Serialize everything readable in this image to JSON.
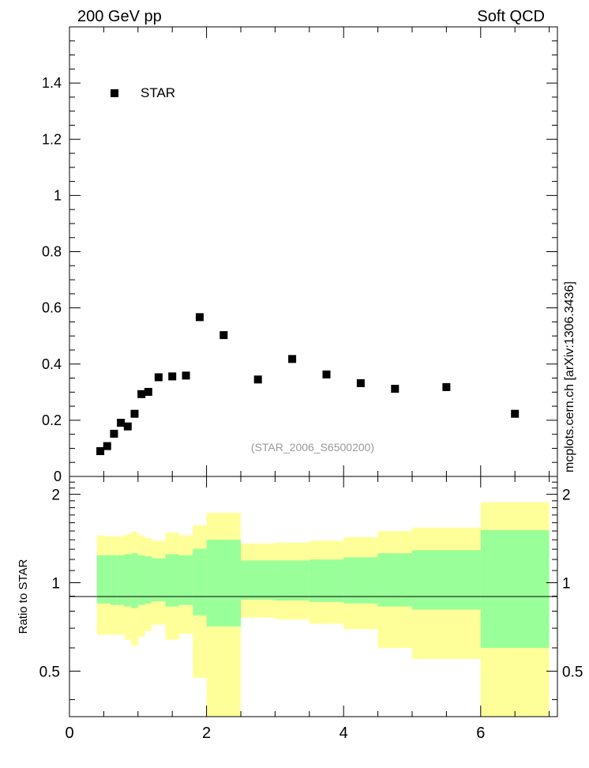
{
  "header": {
    "left_label": "200 GeV pp",
    "right_label": "Soft QCD",
    "side_label": "mcplots.cern.ch [arXiv:1306.3436]"
  },
  "colors": {
    "yellow_band": "#ffff99",
    "green_band": "#99ff99",
    "marker": "#000000",
    "watermark": "#999999"
  },
  "chart_data": [
    {
      "type": "scatter",
      "title": "",
      "xlabel": "",
      "ylabel": "",
      "xlim": [
        0,
        7.12
      ],
      "ylim": [
        0,
        1.6
      ],
      "y_ticks": [
        0,
        0.2,
        0.4,
        0.6,
        0.8,
        1,
        1.2,
        1.4
      ],
      "y_tick_labels": [
        "0",
        "0.2",
        "0.4",
        "0.6",
        "0.8",
        "1",
        "1.2",
        "1.4"
      ],
      "legend": {
        "entries": [
          "STAR"
        ],
        "placement": "top-left"
      },
      "annotation": "(STAR_2006_S6500200)",
      "series": [
        {
          "name": "STAR",
          "x": [
            0.45,
            0.55,
            0.65,
            0.75,
            0.85,
            0.95,
            1.05,
            1.15,
            1.3,
            1.5,
            1.7,
            1.9,
            2.25,
            2.75,
            3.25,
            3.75,
            4.25,
            4.75,
            5.5,
            6.5
          ],
          "y": [
            0.09,
            0.108,
            0.152,
            0.191,
            0.178,
            0.223,
            0.293,
            0.301,
            0.353,
            0.356,
            0.359,
            0.567,
            0.503,
            0.345,
            0.418,
            0.363,
            0.332,
            0.312,
            0.318,
            0.223
          ]
        }
      ]
    },
    {
      "type": "area",
      "title": "",
      "xlabel": "",
      "ylabel": "Ratio to STAR",
      "xlim": [
        0,
        7.12
      ],
      "ylim": [
        0.35,
        2.3
      ],
      "scale": "log",
      "y_ticks": [
        0.5,
        1,
        2
      ],
      "y_tick_labels": [
        "0.5",
        "1",
        "2"
      ],
      "x_ticks": [
        0,
        2,
        4,
        6
      ],
      "x_tick_labels": [
        "0",
        "2",
        "4",
        "6"
      ],
      "reference_line": 1,
      "bins": [
        {
          "lo": 0.4,
          "hi": 0.5,
          "y_lo": 0.665,
          "y_hi": 1.45,
          "g_lo": 0.85,
          "g_hi": 1.24
        },
        {
          "lo": 0.5,
          "hi": 0.6,
          "y_lo": 0.665,
          "y_hi": 1.44,
          "g_lo": 0.85,
          "g_hi": 1.24
        },
        {
          "lo": 0.6,
          "hi": 0.7,
          "y_lo": 0.665,
          "y_hi": 1.44,
          "g_lo": 0.84,
          "g_hi": 1.24
        },
        {
          "lo": 0.7,
          "hi": 0.8,
          "y_lo": 0.665,
          "y_hi": 1.44,
          "g_lo": 0.84,
          "g_hi": 1.24
        },
        {
          "lo": 0.8,
          "hi": 0.9,
          "y_lo": 0.64,
          "y_hi": 1.46,
          "g_lo": 0.83,
          "g_hi": 1.25
        },
        {
          "lo": 0.9,
          "hi": 1.0,
          "y_lo": 0.61,
          "y_hi": 1.49,
          "g_lo": 0.82,
          "g_hi": 1.26
        },
        {
          "lo": 1.0,
          "hi": 1.1,
          "y_lo": 0.655,
          "y_hi": 1.45,
          "g_lo": 0.84,
          "g_hi": 1.24
        },
        {
          "lo": 1.1,
          "hi": 1.2,
          "y_lo": 0.685,
          "y_hi": 1.42,
          "g_lo": 0.85,
          "g_hi": 1.23
        },
        {
          "lo": 1.2,
          "hi": 1.4,
          "y_lo": 0.72,
          "y_hi": 1.39,
          "g_lo": 0.865,
          "g_hi": 1.21
        },
        {
          "lo": 1.4,
          "hi": 1.6,
          "y_lo": 0.64,
          "y_hi": 1.48,
          "g_lo": 0.83,
          "g_hi": 1.25
        },
        {
          "lo": 1.6,
          "hi": 1.8,
          "y_lo": 0.67,
          "y_hi": 1.45,
          "g_lo": 0.84,
          "g_hi": 1.24
        },
        {
          "lo": 1.8,
          "hi": 2.0,
          "y_lo": 0.475,
          "y_hi": 1.57,
          "g_lo": 0.775,
          "g_hi": 1.305
        },
        {
          "lo": 2.0,
          "hi": 2.5,
          "y_lo": 0.35,
          "y_hi": 1.73,
          "g_lo": 0.71,
          "g_hi": 1.4
        },
        {
          "lo": 2.5,
          "hi": 3.0,
          "y_lo": 0.76,
          "y_hi": 1.36,
          "g_lo": 0.875,
          "g_hi": 1.19
        },
        {
          "lo": 3.0,
          "hi": 3.5,
          "y_lo": 0.75,
          "y_hi": 1.37,
          "g_lo": 0.87,
          "g_hi": 1.19
        },
        {
          "lo": 3.5,
          "hi": 4.0,
          "y_lo": 0.725,
          "y_hi": 1.39,
          "g_lo": 0.86,
          "g_hi": 1.2
        },
        {
          "lo": 4.0,
          "hi": 4.5,
          "y_lo": 0.695,
          "y_hi": 1.43,
          "g_lo": 0.85,
          "g_hi": 1.22
        },
        {
          "lo": 4.5,
          "hi": 5.0,
          "y_lo": 0.6,
          "y_hi": 1.5,
          "g_lo": 0.83,
          "g_hi": 1.26
        },
        {
          "lo": 5.0,
          "hi": 6.0,
          "y_lo": 0.55,
          "y_hi": 1.54,
          "g_lo": 0.81,
          "g_hi": 1.29
        },
        {
          "lo": 6.0,
          "hi": 7.0,
          "y_lo": 0.35,
          "y_hi": 1.88,
          "g_lo": 0.6,
          "g_hi": 1.51
        }
      ]
    }
  ]
}
